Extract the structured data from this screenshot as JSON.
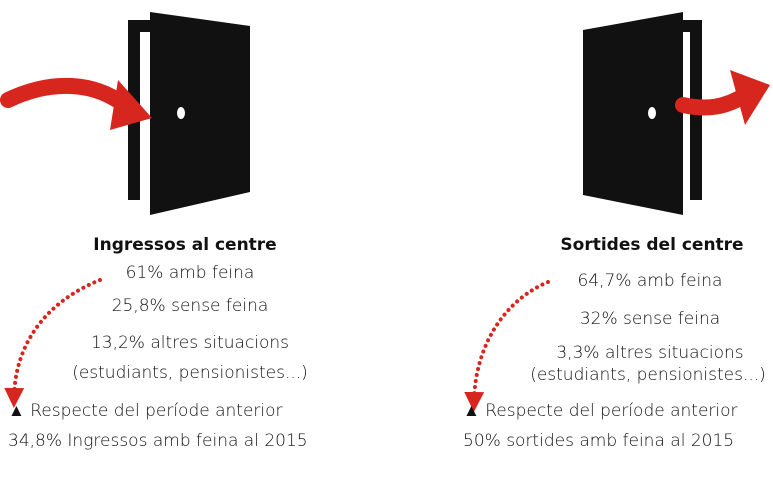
{
  "panels": [
    {
      "title": "Ingressos al centre",
      "items": [
        "61% amb feina",
        "25,8% sense feina",
        "13,2% altres situacions",
        "(estudiants, pensionistes...)"
      ],
      "note": "▲ Respecte del període anterior",
      "comparison": "34,8% Ingressos amb feina al 2015"
    },
    {
      "title": "Sortides del centre",
      "items": [
        "64,7% amb feina",
        "32% sense feina",
        "3,3% altres situacions",
        "(estudiants, pensionistes...)"
      ],
      "note": "▲ Respecte del període anterior",
      "comparison": "50% sortides amb feina al 2015"
    }
  ]
}
